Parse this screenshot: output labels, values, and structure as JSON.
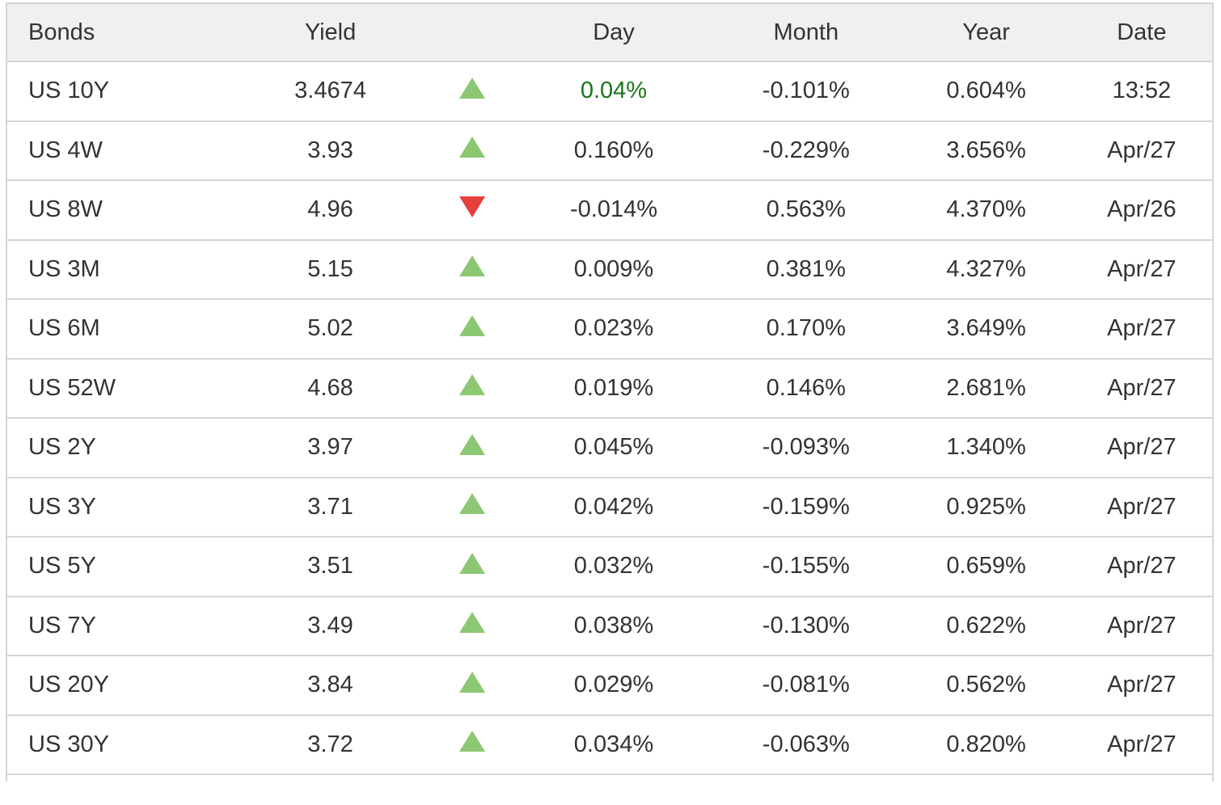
{
  "table": {
    "columns": [
      {
        "label": "Bonds"
      },
      {
        "label": "Yield"
      },
      {
        "label": ""
      },
      {
        "label": "Day"
      },
      {
        "label": "Month"
      },
      {
        "label": "Year"
      },
      {
        "label": "Date"
      }
    ],
    "rows": [
      {
        "bond": "US 10Y",
        "yield": "3.4674",
        "direction": "up",
        "day": "0.04%",
        "day_highlight": true,
        "month": "-0.101%",
        "year": "0.604%",
        "date": "13:52"
      },
      {
        "bond": "US 4W",
        "yield": "3.93",
        "direction": "up",
        "day": "0.160%",
        "day_highlight": false,
        "month": "-0.229%",
        "year": "3.656%",
        "date": "Apr/27"
      },
      {
        "bond": "US 8W",
        "yield": "4.96",
        "direction": "down",
        "day": "-0.014%",
        "day_highlight": false,
        "month": "0.563%",
        "year": "4.370%",
        "date": "Apr/26"
      },
      {
        "bond": "US 3M",
        "yield": "5.15",
        "direction": "up",
        "day": "0.009%",
        "day_highlight": false,
        "month": "0.381%",
        "year": "4.327%",
        "date": "Apr/27"
      },
      {
        "bond": "US 6M",
        "yield": "5.02",
        "direction": "up",
        "day": "0.023%",
        "day_highlight": false,
        "month": "0.170%",
        "year": "3.649%",
        "date": "Apr/27"
      },
      {
        "bond": "US 52W",
        "yield": "4.68",
        "direction": "up",
        "day": "0.019%",
        "day_highlight": false,
        "month": "0.146%",
        "year": "2.681%",
        "date": "Apr/27"
      },
      {
        "bond": "US 2Y",
        "yield": "3.97",
        "direction": "up",
        "day": "0.045%",
        "day_highlight": false,
        "month": "-0.093%",
        "year": "1.340%",
        "date": "Apr/27"
      },
      {
        "bond": "US 3Y",
        "yield": "3.71",
        "direction": "up",
        "day": "0.042%",
        "day_highlight": false,
        "month": "-0.159%",
        "year": "0.925%",
        "date": "Apr/27"
      },
      {
        "bond": "US 5Y",
        "yield": "3.51",
        "direction": "up",
        "day": "0.032%",
        "day_highlight": false,
        "month": "-0.155%",
        "year": "0.659%",
        "date": "Apr/27"
      },
      {
        "bond": "US 7Y",
        "yield": "3.49",
        "direction": "up",
        "day": "0.038%",
        "day_highlight": false,
        "month": "-0.130%",
        "year": "0.622%",
        "date": "Apr/27"
      },
      {
        "bond": "US 20Y",
        "yield": "3.84",
        "direction": "up",
        "day": "0.029%",
        "day_highlight": false,
        "month": "-0.081%",
        "year": "0.562%",
        "date": "Apr/27"
      },
      {
        "bond": "US 30Y",
        "yield": "3.72",
        "direction": "up",
        "day": "0.034%",
        "day_highlight": false,
        "month": "-0.063%",
        "year": "0.820%",
        "date": "Apr/27"
      }
    ]
  },
  "colors": {
    "up_green": "#8cc873",
    "down_red": "#e5403a",
    "day_positive_text": "#1a751a",
    "header_bg": "#f0f0f0",
    "border": "#d5d5d5",
    "text": "#333333"
  }
}
